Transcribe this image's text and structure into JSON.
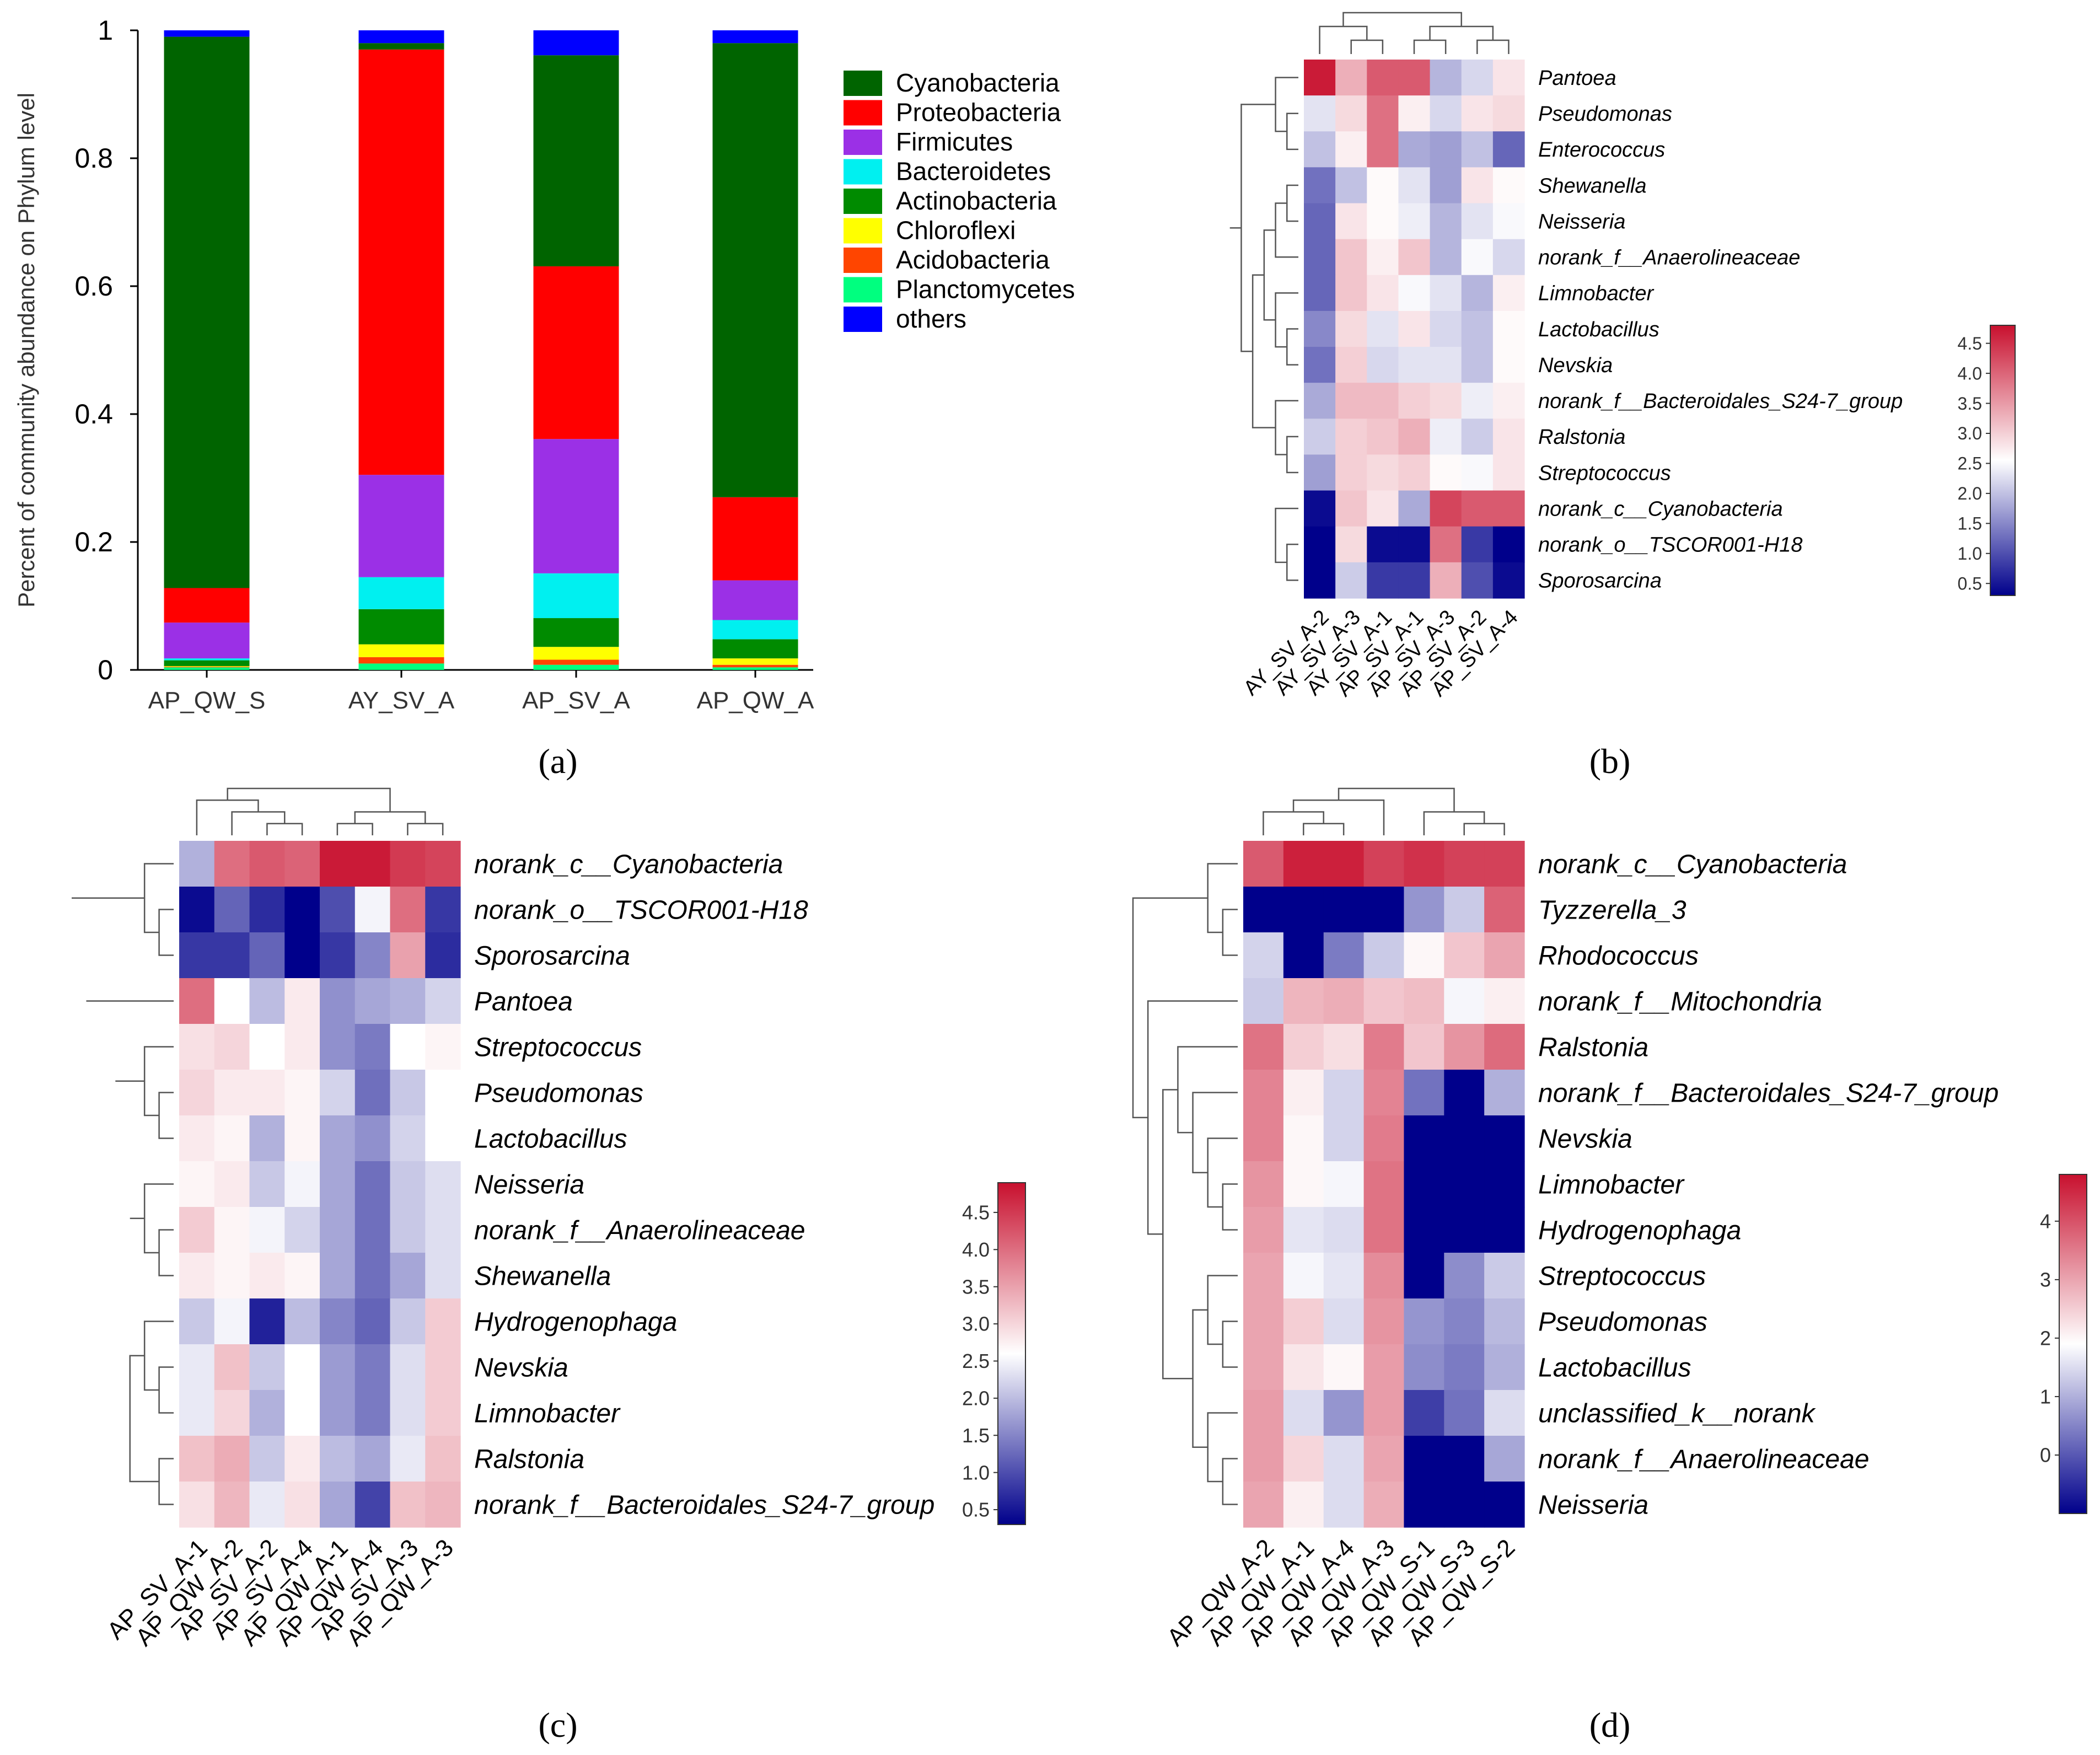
{
  "colors": {
    "Cyanobacteria": "#006400",
    "Proteobacteria": "#ff0000",
    "Firmicutes": "#9b30e6",
    "Bacteroidetes": "#00f0f0",
    "Actinobacteria": "#008b00",
    "Chloroflexi": "#ffff00",
    "Acidobacteria": "#ff4500",
    "Planctomycetes": "#00ff7f",
    "others": "#0000ff",
    "heat_low": "#00008b",
    "heat_mid": "#ffffff",
    "heat_high": "#c8102e"
  },
  "chart_data": [
    {
      "id": "a",
      "type": "bar",
      "stacked": true,
      "panel_label": "(a)",
      "ylabel": "Percent of community abundance on Phylum level",
      "ylim": [
        0,
        1
      ],
      "yticks": [
        "0",
        "0.2",
        "0.4",
        "0.6",
        "0.8",
        "1"
      ],
      "categories": [
        "AP_QW_S",
        "AY_SV_A",
        "AP_SV_A",
        "AP_QW_A"
      ],
      "legend_position": "right",
      "series": [
        {
          "name": "Planctomycetes",
          "values": [
            0.004,
            0.01,
            0.008,
            0.004
          ]
        },
        {
          "name": "Acidobacteria",
          "values": [
            0.001,
            0.01,
            0.008,
            0.004
          ]
        },
        {
          "name": "Chloroflexi",
          "values": [
            0.001,
            0.02,
            0.02,
            0.01
          ]
        },
        {
          "name": "Actinobacteria",
          "values": [
            0.009,
            0.055,
            0.045,
            0.03
          ]
        },
        {
          "name": "Bacteroidetes",
          "values": [
            0.003,
            0.05,
            0.07,
            0.03
          ]
        },
        {
          "name": "Firmicutes",
          "values": [
            0.056,
            0.16,
            0.21,
            0.062
          ]
        },
        {
          "name": "Proteobacteria",
          "values": [
            0.054,
            0.665,
            0.27,
            0.13
          ]
        },
        {
          "name": "Cyanobacteria",
          "values": [
            0.862,
            0.01,
            0.33,
            0.71
          ]
        },
        {
          "name": "others",
          "values": [
            0.01,
            0.02,
            0.039,
            0.02
          ]
        }
      ],
      "legend_entries": [
        "Cyanobacteria",
        "Proteobacteria",
        "Firmicutes",
        "Bacteroidetes",
        "Actinobacteria",
        "Chloroflexi",
        "Acidobacteria",
        "Planctomycetes",
        "others"
      ]
    },
    {
      "id": "b",
      "type": "heatmap",
      "panel_label": "(b)",
      "rows": [
        "Pantoea",
        "Pseudomonas",
        "Enterococcus",
        "Shewanella",
        "Neisseria",
        "norank_f__Anaerolineaceae",
        "Limnobacter",
        "Lactobacillus",
        "Nevskia",
        "norank_f__Bacteroidales_S24-7_group",
        "Ralstonia",
        "Streptococcus",
        "norank_c__Cyanobacteria",
        "norank_o__TSCOR001-H18",
        "Sporosarcina"
      ],
      "columns": [
        "AY_SV_A-2",
        "AY_SV_A-3",
        "AY_SV_A-1",
        "AP_SV_A-1",
        "AP_SV_A-3",
        "AP_SV_A-2",
        "AP_SV_A-4"
      ],
      "values": [
        [
          4.7,
          3.3,
          4.1,
          4.1,
          1.9,
          2.2,
          2.8
        ],
        [
          2.3,
          2.9,
          3.9,
          2.7,
          2.2,
          2.8,
          2.9
        ],
        [
          2.0,
          2.7,
          3.9,
          1.8,
          1.7,
          2.0,
          1.2
        ],
        [
          1.3,
          2.0,
          2.6,
          2.3,
          1.7,
          2.8,
          2.6
        ],
        [
          1.2,
          2.8,
          2.6,
          2.4,
          1.9,
          2.3,
          2.5
        ],
        [
          1.2,
          3.1,
          2.7,
          3.1,
          1.9,
          2.5,
          2.2
        ],
        [
          1.2,
          3.1,
          2.8,
          2.5,
          2.3,
          1.9,
          2.7
        ],
        [
          1.5,
          2.9,
          2.3,
          2.8,
          2.2,
          2.0,
          2.6
        ],
        [
          1.3,
          3.0,
          2.2,
          2.3,
          2.3,
          2.0,
          2.6
        ],
        [
          1.8,
          3.2,
          3.2,
          3.0,
          2.9,
          2.4,
          2.7
        ],
        [
          2.1,
          3.0,
          3.1,
          3.3,
          2.4,
          2.1,
          2.8
        ],
        [
          1.7,
          3.0,
          2.9,
          3.0,
          2.6,
          2.5,
          2.8
        ],
        [
          0.4,
          3.1,
          2.8,
          1.8,
          4.3,
          4.1,
          4.1
        ],
        [
          0.3,
          2.9,
          0.4,
          0.4,
          3.9,
          0.8,
          0.3
        ],
        [
          0.3,
          2.1,
          0.8,
          0.8,
          3.3,
          1.0,
          0.4
        ]
      ],
      "vmin": 0.3,
      "vmax": 4.8,
      "colorbar_ticks": [
        "0.5",
        "1.0",
        "1.5",
        "2.0",
        "2.5",
        "3.0",
        "3.5",
        "4.0",
        "4.5"
      ],
      "colorbar_tick_values": [
        0.5,
        1.0,
        1.5,
        2.0,
        2.5,
        3.0,
        3.5,
        4.0,
        4.5
      ]
    },
    {
      "id": "c",
      "type": "heatmap",
      "panel_label": "(c)",
      "rows": [
        "norank_c__Cyanobacteria",
        "norank_o__TSCOR001-H18",
        "Sporosarcina",
        "Pantoea",
        "Streptococcus",
        "Pseudomonas",
        "Lactobacillus",
        "Neisseria",
        "norank_f__Anaerolineaceae",
        "Shewanella",
        "Hydrogenophaga",
        "Nevskia",
        "Limnobacter",
        "Ralstonia",
        "norank_f__Bacteroidales_S24-7_group"
      ],
      "columns": [
        "AP_SV_A-1",
        "AP_QW_A-2",
        "AP_SV_A-2",
        "AP_SV_A-4",
        "AP_QW_A-1",
        "AP_QW_A-4",
        "AP_SV_A-3",
        "AP_QW_A-3"
      ],
      "values": [
        [
          1.9,
          4.0,
          4.2,
          4.1,
          4.8,
          4.8,
          4.5,
          4.4
        ],
        [
          0.4,
          1.2,
          0.7,
          0.2,
          1.0,
          2.5,
          4.0,
          0.8
        ],
        [
          0.8,
          0.8,
          1.2,
          0.3,
          0.8,
          1.5,
          3.5,
          0.7
        ],
        [
          4.0,
          2.6,
          2.0,
          2.8,
          1.6,
          1.8,
          1.9,
          2.2
        ],
        [
          2.9,
          3.0,
          2.6,
          2.8,
          1.6,
          1.4,
          2.6,
          2.7
        ],
        [
          3.0,
          2.8,
          2.8,
          2.7,
          2.2,
          1.3,
          2.1,
          2.6
        ],
        [
          2.8,
          2.7,
          1.9,
          2.7,
          1.8,
          1.6,
          2.2,
          2.6
        ],
        [
          2.7,
          2.8,
          2.1,
          2.5,
          1.8,
          1.3,
          2.1,
          2.3
        ],
        [
          3.1,
          2.7,
          2.5,
          2.2,
          1.8,
          1.3,
          2.1,
          2.3
        ],
        [
          2.8,
          2.7,
          2.8,
          2.7,
          1.8,
          1.3,
          1.8,
          2.3
        ],
        [
          2.1,
          2.5,
          0.6,
          2.0,
          1.5,
          1.2,
          2.1,
          3.1
        ],
        [
          2.4,
          3.2,
          2.1,
          2.6,
          1.7,
          1.4,
          2.3,
          3.1
        ],
        [
          2.4,
          3.0,
          1.9,
          2.6,
          1.7,
          1.4,
          2.3,
          3.1
        ],
        [
          3.2,
          3.4,
          2.1,
          2.8,
          2.0,
          1.8,
          2.4,
          3.2
        ],
        [
          2.9,
          3.3,
          2.4,
          2.9,
          1.8,
          0.9,
          3.2,
          3.3
        ]
      ],
      "vmin": 0.3,
      "vmax": 4.9,
      "colorbar_ticks": [
        "0.5",
        "1.0",
        "1.5",
        "2.0",
        "2.5",
        "3.0",
        "3.5",
        "4.0",
        "4.5"
      ],
      "colorbar_tick_values": [
        0.5,
        1.0,
        1.5,
        2.0,
        2.5,
        3.0,
        3.5,
        4.0,
        4.5
      ]
    },
    {
      "id": "d",
      "type": "heatmap",
      "panel_label": "(d)",
      "rows": [
        "norank_c__Cyanobacteria",
        "Tyzzerella_3",
        "Rhodococcus",
        "norank_f__Mitochondria",
        "Ralstonia",
        "norank_f__Bacteroidales_S24-7_group",
        "Nevskia",
        "Limnobacter",
        "Hydrogenophaga",
        "Streptococcus",
        "Pseudomonas",
        "Lactobacillus",
        "unclassified_k__norank",
        "norank_f__Anaerolineaceae",
        "Neisseria"
      ],
      "columns": [
        "AP_QW_A-2",
        "AP_QW_A-1",
        "AP_QW_A-4",
        "AP_QW_A-3",
        "AP_QW_S-1",
        "AP_QW_S-3",
        "AP_QW_S-2"
      ],
      "values": [
        [
          3.9,
          4.6,
          4.6,
          4.2,
          4.4,
          4.2,
          4.2
        ],
        [
          -1.0,
          -1.0,
          -1.0,
          -1.0,
          0.7,
          1.3,
          3.8
        ],
        [
          1.4,
          -1.0,
          0.4,
          1.3,
          2.0,
          2.6,
          3.0
        ],
        [
          1.3,
          2.8,
          2.9,
          2.6,
          2.7,
          1.8,
          2.1
        ],
        [
          3.6,
          2.5,
          2.3,
          3.5,
          2.6,
          3.2,
          3.7
        ],
        [
          3.4,
          2.1,
          1.4,
          3.4,
          0.3,
          -1.0,
          1.0
        ],
        [
          3.4,
          2.0,
          1.4,
          3.5,
          -1.0,
          -1.0,
          -1.0
        ],
        [
          3.2,
          2.0,
          1.8,
          3.6,
          -1.0,
          -1.0,
          -1.0
        ],
        [
          3.1,
          1.6,
          1.5,
          3.6,
          -1.0,
          -1.0,
          -1.0
        ],
        [
          3.0,
          1.8,
          1.6,
          3.3,
          -1.0,
          0.6,
          1.3
        ],
        [
          3.0,
          2.5,
          1.5,
          3.2,
          0.7,
          0.5,
          1.1
        ],
        [
          3.0,
          2.2,
          2.0,
          3.1,
          0.6,
          0.4,
          1.0
        ],
        [
          3.1,
          1.5,
          0.7,
          3.1,
          -0.3,
          0.3,
          1.5
        ],
        [
          3.1,
          2.4,
          1.5,
          3.0,
          -1.0,
          -1.0,
          0.9
        ],
        [
          3.0,
          2.1,
          1.5,
          2.9,
          -1.0,
          -1.0,
          -1.0
        ]
      ],
      "vmin": -1.0,
      "vmax": 4.8,
      "colorbar_ticks": [
        "0",
        "1",
        "2",
        "3",
        "4"
      ],
      "colorbar_tick_values": [
        0,
        1,
        2,
        3,
        4
      ]
    }
  ]
}
